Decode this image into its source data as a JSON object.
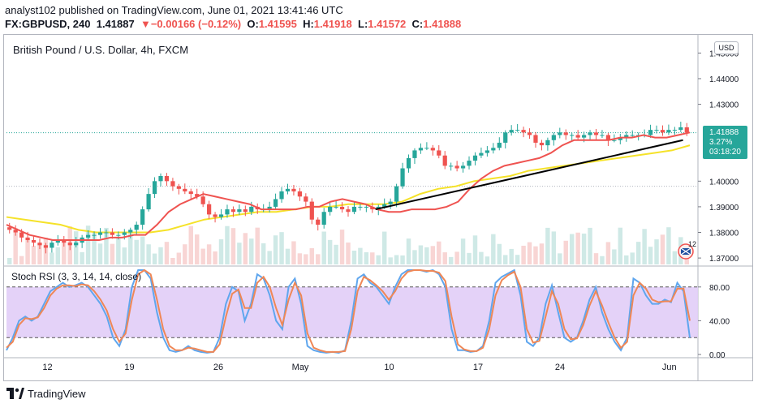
{
  "header": {
    "publish_line": "analyst102 published on TradingView.com, June 01, 2021 13:41:46 UTC",
    "symbol": "FX:GBPUSD, 240",
    "last": "1.41887",
    "change_arrow": "▼",
    "change": "−0.00166 (−0.12%)",
    "o_label": "O:",
    "o_value": "1.41595",
    "h_label": "H:",
    "h_value": "1.41918",
    "l_label": "L:",
    "l_value": "1.41572",
    "c_label": "C:",
    "c_value": "1.41888"
  },
  "pane_title": "British Pound / U.S. Dollar, 4h, FXCM",
  "currency_button": "USD",
  "price_badge": {
    "price": "1.41888",
    "percent": "3.27%",
    "countdown": "03:18:20"
  },
  "rsi_title": "Stoch RSI (3, 3, 14, 14, close)",
  "badge_count": "12",
  "footer": {
    "brand": "TradingView",
    "logo": "tradingview-logo"
  },
  "colors": {
    "up": "#26a69a",
    "down": "#ef5350",
    "ma_fast": "#ef5350",
    "ma_slow": "#f5e229",
    "trendline": "#000000",
    "stoch_k": "#5fa6ee",
    "stoch_d": "#ef8756",
    "rsi_band": "#e1cdf7"
  },
  "chart_data": [
    {
      "type": "candlestick",
      "title": "British Pound / U.S. Dollar, 4h, FXCM",
      "x_ticks": [
        "12",
        "19",
        "26",
        "May",
        "10",
        "17",
        "24",
        "Jun"
      ],
      "y_ticks": [
        "1.45000",
        "1.44000",
        "1.43000",
        "1.40000",
        "1.39000",
        "1.38000",
        "1.37000"
      ],
      "ylim": [
        1.3675,
        1.4555
      ],
      "current_price": 1.41888,
      "candles_close": [
        1.381,
        1.38,
        1.378,
        1.377,
        1.376,
        1.375,
        1.374,
        1.376,
        1.377,
        1.376,
        1.375,
        1.376,
        1.378,
        1.379,
        1.379,
        1.38,
        1.38,
        1.379,
        1.379,
        1.38,
        1.381,
        1.383,
        1.389,
        1.395,
        1.4,
        1.402,
        1.4,
        1.398,
        1.397,
        1.396,
        1.395,
        1.394,
        1.391,
        1.387,
        1.386,
        1.387,
        1.389,
        1.388,
        1.389,
        1.388,
        1.39,
        1.389,
        1.389,
        1.39,
        1.393,
        1.396,
        1.397,
        1.396,
        1.394,
        1.392,
        1.385,
        1.383,
        1.388,
        1.39,
        1.39,
        1.389,
        1.388,
        1.39,
        1.39,
        1.39,
        1.389,
        1.39,
        1.391,
        1.392,
        1.398,
        1.405,
        1.409,
        1.412,
        1.413,
        1.413,
        1.412,
        1.41,
        1.406,
        1.406,
        1.405,
        1.406,
        1.408,
        1.41,
        1.411,
        1.412,
        1.413,
        1.415,
        1.419,
        1.42,
        1.42,
        1.419,
        1.418,
        1.415,
        1.414,
        1.416,
        1.418,
        1.419,
        1.418,
        1.418,
        1.417,
        1.418,
        1.419,
        1.418,
        1.418,
        1.416,
        1.416,
        1.417,
        1.418,
        1.418,
        1.418,
        1.418,
        1.42,
        1.42,
        1.419,
        1.42,
        1.42,
        1.421,
        1.419
      ],
      "ma_fast": [
        1.383,
        1.381,
        1.379,
        1.378,
        1.377,
        1.377,
        1.377,
        1.377,
        1.377,
        1.378,
        1.378,
        1.379,
        1.379,
        1.383,
        1.388,
        1.391,
        1.393,
        1.395,
        1.394,
        1.393,
        1.392,
        1.391,
        1.389,
        1.389,
        1.389,
        1.389,
        1.39,
        1.39,
        1.392,
        1.393,
        1.392,
        1.391,
        1.389,
        1.388,
        1.388,
        1.389,
        1.389,
        1.389,
        1.39,
        1.392,
        1.397,
        1.401,
        1.404,
        1.406,
        1.407,
        1.408,
        1.409,
        1.411,
        1.414,
        1.416,
        1.416,
        1.416,
        1.416,
        1.417,
        1.417,
        1.418,
        1.417,
        1.417,
        1.418,
        1.419
      ],
      "ma_slow": [
        1.386,
        1.385,
        1.384,
        1.383,
        1.381,
        1.38,
        1.38,
        1.38,
        1.38,
        1.381,
        1.383,
        1.385,
        1.386,
        1.387,
        1.388,
        1.388,
        1.389,
        1.39,
        1.39,
        1.391,
        1.391,
        1.391,
        1.392,
        1.395,
        1.397,
        1.398,
        1.4,
        1.401,
        1.402,
        1.404,
        1.405,
        1.406,
        1.407,
        1.408,
        1.409,
        1.41,
        1.411,
        1.412,
        1.414
      ],
      "trendline": {
        "start": 1.389,
        "end": 1.416
      }
    },
    {
      "type": "line",
      "title": "Stoch RSI (3, 3, 14, 14, close)",
      "y_ticks": [
        "80.00",
        "40.00",
        "0.00"
      ],
      "ylim": [
        0,
        100
      ],
      "band": [
        20,
        80
      ],
      "series": [
        {
          "name": "K",
          "values": [
            5,
            20,
            40,
            45,
            40,
            45,
            60,
            75,
            80,
            85,
            80,
            82,
            85,
            80,
            70,
            60,
            45,
            20,
            10,
            30,
            80,
            100,
            100,
            90,
            50,
            20,
            5,
            3,
            5,
            10,
            5,
            3,
            2,
            3,
            20,
            60,
            80,
            75,
            40,
            60,
            95,
            90,
            70,
            40,
            30,
            80,
            90,
            60,
            10,
            5,
            3,
            2,
            3,
            2,
            5,
            40,
            90,
            95,
            85,
            80,
            70,
            60,
            80,
            95,
            100,
            100,
            100,
            98,
            100,
            95,
            80,
            30,
            5,
            5,
            3,
            4,
            10,
            40,
            85,
            92,
            96,
            100,
            70,
            15,
            10,
            20,
            60,
            82,
            50,
            20,
            15,
            20,
            40,
            65,
            80,
            50,
            30,
            15,
            5,
            20,
            90,
            85,
            70,
            60,
            60,
            65,
            62,
            85,
            75,
            20
          ]
        },
        {
          "name": "D",
          "values": [
            8,
            15,
            35,
            43,
            42,
            44,
            55,
            70,
            78,
            82,
            82,
            81,
            83,
            82,
            75,
            65,
            52,
            30,
            15,
            25,
            65,
            95,
            100,
            95,
            65,
            30,
            10,
            5,
            5,
            8,
            7,
            5,
            3,
            3,
            12,
            45,
            72,
            77,
            55,
            55,
            85,
            92,
            80,
            55,
            35,
            65,
            85,
            70,
            25,
            8,
            5,
            3,
            3,
            3,
            4,
            30,
            75,
            92,
            88,
            82,
            75,
            65,
            75,
            90,
            98,
            100,
            100,
            99,
            99,
            97,
            87,
            45,
            12,
            6,
            4,
            4,
            8,
            30,
            70,
            88,
            94,
            98,
            80,
            30,
            14,
            16,
            45,
            75,
            60,
            30,
            18,
            19,
            35,
            58,
            75,
            58,
            38,
            20,
            8,
            15,
            70,
            85,
            78,
            65,
            62,
            63,
            63,
            78,
            78,
            40
          ]
        }
      ]
    }
  ]
}
